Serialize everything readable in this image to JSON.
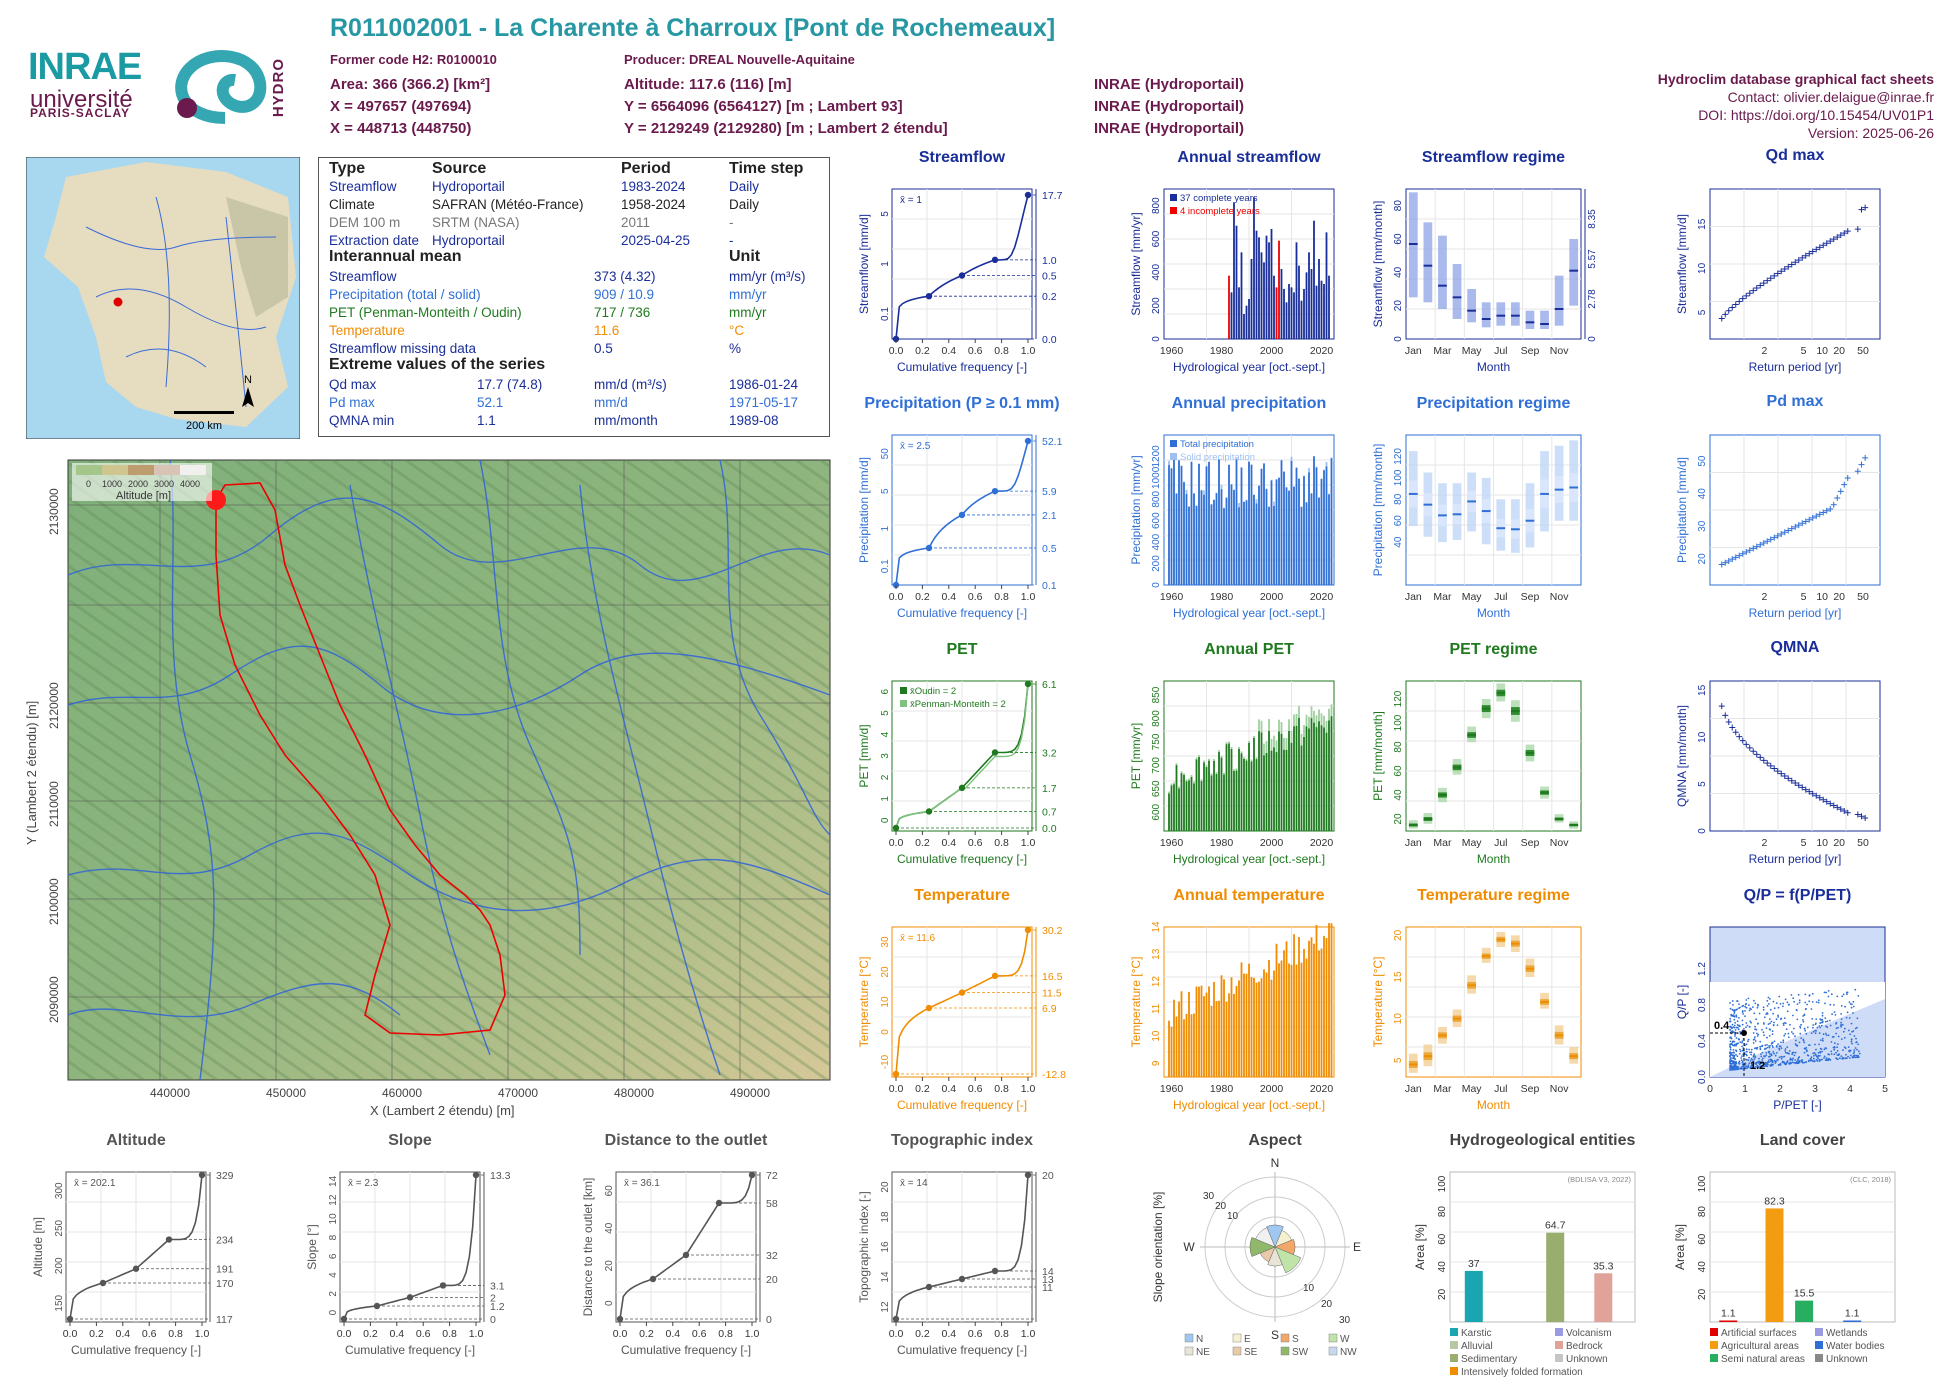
{
  "header": {
    "title": "R011002001 - La Charente à Charroux [Pont de Rochemeaux]",
    "former_code": "Former code H2: R0100010",
    "producer": "Producer: DREAL Nouvelle-Aquitaine",
    "area": "Area: 366 (366.2) [km²]",
    "x93": "X = 497657 (497694)",
    "x2e": "X = 448713 (448750)",
    "altitude": "Altitude: 117.6 (116) [m]",
    "y93": "Y = 6564096 (6564127) [m ; Lambert 93]",
    "y2e": "Y = 2129249 (2129280) [m ; Lambert 2 étendu]",
    "src1": "INRAE (Hydroportail)",
    "src2": "INRAE (Hydroportail)",
    "src3": "INRAE (Hydroportail)",
    "db_title": "Hydroclim database graphical fact sheets",
    "contact": "Contact: olivier.delaigue@inrae.fr",
    "doi": "DOI: https://doi.org/10.15454/UV01P1",
    "version": "Version: 2025-06-26",
    "logo_inrae": "INRAE",
    "logo_univ": "université",
    "logo_ps": "PARIS-SACLAY",
    "logo_hydro": "HYDRO"
  },
  "info": {
    "h_type": "Type",
    "h_source": "Source",
    "h_period": "Period",
    "h_step": "Time step",
    "rows": [
      {
        "type": "Streamflow",
        "source": "Hydroportail",
        "period": "1983-2024",
        "step": "Daily"
      },
      {
        "type": "Climate",
        "source": "SAFRAN (Météo-France)",
        "period": "1958-2024",
        "step": "Daily"
      },
      {
        "type": "DEM 100 m",
        "source": "SRTM (NASA)",
        "period": "2011",
        "step": "-"
      },
      {
        "type": "Extraction date",
        "source": "Hydroportail",
        "period": "2025-04-25",
        "step": "-"
      }
    ],
    "interannual_title": "Interannual mean",
    "unit_title": "Unit",
    "means": [
      {
        "label": "Streamflow",
        "value": "373 (4.32)",
        "unit": "mm/yr (m³/s)"
      },
      {
        "label": "Precipitation (total / solid)",
        "value": "909 / 10.9",
        "unit": "mm/yr"
      },
      {
        "label": "PET (Penman-Monteith / Oudin)",
        "value": "717 / 736",
        "unit": "mm/yr"
      },
      {
        "label": "Temperature",
        "value": "11.6",
        "unit": "°C"
      },
      {
        "label": "Streamflow missing data",
        "value": "0.5",
        "unit": "%"
      }
    ],
    "extreme_title": "Extreme values of the series",
    "extremes": [
      {
        "label": "Qd max",
        "value": "17.7 (74.8)",
        "unit": "mm/d (m³/s)",
        "date": "1986-01-24"
      },
      {
        "label": "Pd max",
        "value": "52.1",
        "unit": "mm/d",
        "date": "1971-05-17"
      },
      {
        "label": "QMNA min",
        "value": "1.1",
        "unit": "mm/month",
        "date": "1989-08"
      }
    ]
  },
  "map": {
    "scale": "200 km",
    "north": "N",
    "legend_title": "Altitude [m]",
    "legend_ticks": [
      "0",
      "1000",
      "2000",
      "3000",
      "4000"
    ],
    "xlabel": "X (Lambert 2 étendu) [m]",
    "ylabel": "Y (Lambert 2 étendu) [m]",
    "xticks": [
      "440000",
      "450000",
      "460000",
      "470000",
      "480000",
      "490000"
    ],
    "yticks": [
      "2090000",
      "2100000",
      "2110000",
      "2120000",
      "2130000"
    ]
  },
  "chart_data": [
    {
      "id": "streamflow_cdf",
      "type": "line",
      "title": "Streamflow",
      "ylabel": "Streamflow [mm/d]",
      "xlabel": "Cumulative frequency [-]",
      "mean_label": "x̄ = 1",
      "scale": "log",
      "ylim": [
        0.02,
        20
      ],
      "x": [
        0,
        0.25,
        0.5,
        0.75,
        1
      ],
      "values": [
        0.03,
        0.2,
        0.5,
        1.0,
        17.7
      ],
      "right_ticks": [
        "17.7",
        "1.0",
        "0.5",
        "0.2",
        "0.0"
      ],
      "left_ticks": [
        "0.1",
        "1",
        "5"
      ]
    },
    {
      "id": "annual_streamflow",
      "type": "bar",
      "title": "Annual streamflow",
      "ylabel": "Streamflow [mm/yr]",
      "xlabel": "Hydrological year [oct.-sept.]",
      "legend": [
        "37 complete years",
        "4 incomplete years"
      ],
      "ylim": [
        0,
        900
      ],
      "yticks": [
        "0",
        "200",
        "400",
        "600",
        "800"
      ],
      "xticks": [
        "1960",
        "1980",
        "2000",
        "2020"
      ],
      "years_start": 1983,
      "values": [
        380,
        280,
        820,
        680,
        310,
        520,
        150,
        200,
        240,
        480,
        850,
        650,
        610,
        520,
        460,
        620,
        580,
        660,
        380,
        310,
        590,
        420,
        300,
        220,
        330,
        310,
        280,
        580,
        440,
        230,
        300,
        400,
        520,
        420,
        710,
        320,
        480,
        350,
        330,
        640,
        380
      ],
      "incomplete": [
        1983,
        2002,
        2003,
        2024
      ]
    },
    {
      "id": "streamflow_regime",
      "type": "box",
      "title": "Streamflow regime",
      "ylabel": "Streamflow [mm/month]",
      "xlabel": "Month",
      "categories": [
        "Jan",
        "Feb",
        "Mar",
        "Apr",
        "May",
        "Jun",
        "Jul",
        "Aug",
        "Sep",
        "Oct",
        "Nov",
        "Dec"
      ],
      "xticks": [
        "Jan",
        "Mar",
        "May",
        "Jul",
        "Sep",
        "Nov"
      ],
      "ylim": [
        0,
        90
      ],
      "yticks": [
        "0",
        "20",
        "40",
        "60",
        "80"
      ],
      "right_ticks": [
        "0",
        "2.78",
        "5.57",
        "8.35"
      ],
      "med": [
        57,
        44,
        32,
        25,
        17,
        12,
        14,
        14,
        10,
        9,
        18,
        41
      ],
      "lo": [
        25,
        22,
        18,
        12,
        10,
        7,
        8,
        8,
        6,
        6,
        8,
        20
      ],
      "hi": [
        88,
        70,
        62,
        45,
        30,
        22,
        22,
        22,
        17,
        17,
        38,
        60
      ]
    },
    {
      "id": "qd_max",
      "type": "scatter",
      "title": "Qd max",
      "ylabel": "Streamflow [mm/d]",
      "xlabel": "Return period [yr]",
      "xticks": [
        "2",
        "5",
        "10",
        "20",
        "50"
      ],
      "ylim": [
        2,
        19
      ],
      "yticks": [
        "5",
        "10",
        "15"
      ]
    },
    {
      "id": "precip_cdf",
      "type": "line",
      "title": "Precipitation (P ≥ 0.1 mm)",
      "ylabel": "Precipitation [mm/d]",
      "xlabel": "Cumulative frequency [-]",
      "mean_label": "x̄ = 2.5",
      "x": [
        0,
        0.25,
        0.5,
        0.75,
        1
      ],
      "values": [
        0.1,
        0.5,
        2.1,
        5.9,
        52.1
      ],
      "right_ticks": [
        "52.1",
        "5.9",
        "2.1",
        "0.5",
        "0.1"
      ],
      "left_ticks": [
        "0.1",
        "1",
        "5",
        "50"
      ]
    },
    {
      "id": "annual_precip",
      "type": "bar",
      "title": "Annual precipitation",
      "ylabel": "Precipitation [mm/yr]",
      "xlabel": "Hydrological year [oct.-sept.]",
      "legend": [
        "Total precipitation",
        "Solid precipitation"
      ],
      "ylim": [
        0,
        1400
      ],
      "yticks": [
        "0",
        "200",
        "400",
        "600",
        "800",
        "1000",
        "1200"
      ],
      "xticks": [
        "1960",
        "1980",
        "2000",
        "2020"
      ],
      "years_start": 1959
    },
    {
      "id": "precip_regime",
      "type": "box",
      "title": "Precipitation regime",
      "ylabel": "Precipitation [mm/month]",
      "xlabel": "Month",
      "categories": [
        "Jan",
        "Feb",
        "Mar",
        "Apr",
        "May",
        "Jun",
        "Jul",
        "Aug",
        "Sep",
        "Oct",
        "Nov",
        "Dec"
      ],
      "xticks": [
        "Jan",
        "Mar",
        "May",
        "Jul",
        "Sep",
        "Nov"
      ],
      "ylim": [
        0,
        140
      ],
      "yticks": [
        "40",
        "60",
        "80",
        "100",
        "120"
      ],
      "med": [
        85,
        75,
        65,
        66,
        78,
        69,
        53,
        52,
        60,
        85,
        89,
        91
      ],
      "lo": [
        55,
        45,
        40,
        42,
        50,
        38,
        32,
        30,
        35,
        50,
        60,
        60
      ],
      "hi": [
        125,
        105,
        95,
        95,
        105,
        100,
        80,
        80,
        95,
        125,
        130,
        135
      ]
    },
    {
      "id": "pd_max",
      "type": "scatter",
      "title": "Pd max",
      "ylabel": "Precipitation [mm/d]",
      "xlabel": "Return period [yr]",
      "xticks": [
        "2",
        "5",
        "10",
        "20",
        "50"
      ],
      "ylim": [
        12,
        58
      ],
      "yticks": [
        "20",
        "30",
        "40",
        "50"
      ]
    },
    {
      "id": "pet_cdf",
      "type": "line",
      "title": "PET",
      "ylabel": "PET [mm/d]",
      "xlabel": "Cumulative frequency [-]",
      "legend": [
        "x̄Oudin = 2",
        "x̄Penman-Monteith = 2"
      ],
      "x": [
        0,
        0.25,
        0.5,
        0.75,
        1
      ],
      "values": [
        0,
        0.7,
        1.7,
        3.2,
        6.1
      ],
      "right_ticks": [
        "6.1",
        "3.2",
        "1.7",
        "0.7",
        "0.0"
      ],
      "left_ticks": [
        "0",
        "1",
        "2",
        "3",
        "4",
        "5",
        "6"
      ]
    },
    {
      "id": "annual_pet",
      "type": "bar",
      "title": "Annual PET",
      "ylabel": "PET [mm/yr]",
      "xlabel": "Hydrological year [oct.-sept.]",
      "ylim": [
        560,
        880
      ],
      "yticks": [
        "600",
        "650",
        "700",
        "750",
        "800",
        "850"
      ],
      "xticks": [
        "1960",
        "1980",
        "2000",
        "2020"
      ],
      "years_start": 1959
    },
    {
      "id": "pet_regime",
      "type": "box",
      "title": "PET regime",
      "ylabel": "PET [mm/month]",
      "xlabel": "Month",
      "categories": [
        "Jan",
        "Feb",
        "Mar",
        "Apr",
        "May",
        "Jun",
        "Jul",
        "Aug",
        "Sep",
        "Oct",
        "Nov",
        "Dec"
      ],
      "xticks": [
        "Jan",
        "Mar",
        "May",
        "Jul",
        "Sep",
        "Nov"
      ],
      "ylim": [
        10,
        135
      ],
      "yticks": [
        "20",
        "40",
        "60",
        "80",
        "100",
        "120"
      ],
      "med": [
        15,
        20,
        40,
        63,
        90,
        112,
        125,
        110,
        75,
        42,
        20,
        15
      ],
      "lo": [
        12,
        16,
        34,
        57,
        84,
        104,
        118,
        101,
        68,
        37,
        17,
        12
      ],
      "hi": [
        19,
        25,
        46,
        70,
        97,
        120,
        133,
        119,
        82,
        47,
        24,
        18
      ]
    },
    {
      "id": "qmna",
      "type": "scatter",
      "title": "QMNA",
      "ylabel": "QMNA [mm/month]",
      "xlabel": "Return period [yr]",
      "xticks": [
        "2",
        "5",
        "10",
        "20",
        "50"
      ],
      "ylim": [
        0,
        16
      ],
      "yticks": [
        "0",
        "5",
        "10",
        "15"
      ]
    },
    {
      "id": "temp_cdf",
      "type": "line",
      "title": "Temperature",
      "ylabel": "Temperature [°C]",
      "xlabel": "Cumulative frequency [-]",
      "mean_label": "x̄ = 11.6",
      "x": [
        0,
        0.25,
        0.5,
        0.75,
        1
      ],
      "values": [
        -12.8,
        6.9,
        11.5,
        16.5,
        30.2
      ],
      "right_ticks": [
        "30.2",
        "16.5",
        "11.5",
        "6.9",
        "-12.8"
      ],
      "left_ticks": [
        "-10",
        "0",
        "10",
        "20",
        "30"
      ],
      "ylim": [
        -14,
        32
      ]
    },
    {
      "id": "annual_temp",
      "type": "bar",
      "title": "Annual temperature",
      "ylabel": "Temperature [°C]",
      "xlabel": "Hydrological year [oct.-sept.]",
      "ylim": [
        8.5,
        14
      ],
      "yticks": [
        "9",
        "10",
        "11",
        "12",
        "13",
        "14"
      ],
      "xticks": [
        "1960",
        "1980",
        "2000",
        "2020"
      ],
      "years_start": 1959
    },
    {
      "id": "temp_regime",
      "type": "box",
      "title": "Temperature regime",
      "ylabel": "Temperature [°C]",
      "xlabel": "Month",
      "categories": [
        "Jan",
        "Feb",
        "Mar",
        "Apr",
        "May",
        "Jun",
        "Jul",
        "Aug",
        "Sep",
        "Oct",
        "Nov",
        "Dec"
      ],
      "xticks": [
        "Jan",
        "Mar",
        "May",
        "Jul",
        "Sep",
        "Nov"
      ],
      "ylim": [
        3,
        21
      ],
      "yticks": [
        "5",
        "10",
        "15",
        "20"
      ],
      "med": [
        4.5,
        5.5,
        8,
        10,
        14,
        17.5,
        19.5,
        19,
        16,
        12,
        8,
        5.5
      ],
      "lo": [
        3.5,
        4.3,
        7,
        9,
        13,
        16.7,
        18.6,
        18,
        15,
        11.2,
        6.9,
        4.6
      ],
      "hi": [
        5.8,
        6.9,
        9,
        11.1,
        15.2,
        18.5,
        20.4,
        20,
        17.2,
        13.1,
        9.2,
        6.6
      ]
    },
    {
      "id": "qp_ppet",
      "type": "scatter",
      "title": "Q/P = f(P/PET)",
      "ylabel": "Q/P [-]",
      "xlabel": "P/PET [-]",
      "xticks": [
        "0",
        "1",
        "2",
        "3",
        "4",
        "5"
      ],
      "yticks": [
        "0.0",
        "0.4",
        "0.8",
        "1.2"
      ],
      "labels": [
        "0.4",
        "1.2"
      ]
    },
    {
      "id": "altitude_cdf",
      "type": "line",
      "title": "Altitude",
      "ylabel": "Altitude [m]",
      "xlabel": "Cumulative frequency [-]",
      "mean_label": "x̄ = 202.1",
      "x": [
        0,
        0.25,
        0.5,
        0.75,
        1
      ],
      "values": [
        117,
        170,
        191,
        234,
        329
      ],
      "right_ticks": [
        "329",
        "234",
        "191",
        "170",
        "117"
      ],
      "left_ticks": [
        "150",
        "200",
        "250",
        "300"
      ]
    },
    {
      "id": "slope_cdf",
      "type": "line",
      "title": "Slope",
      "ylabel": "Slope [°]",
      "xlabel": "Cumulative frequency [-]",
      "mean_label": "x̄ = 2.3",
      "x": [
        0,
        0.25,
        0.5,
        0.75,
        1
      ],
      "values": [
        0,
        1.2,
        2,
        3.1,
        13.3
      ],
      "right_ticks": [
        "13.3",
        "3.1",
        "2",
        "1.2",
        "0"
      ],
      "left_ticks": [
        "0",
        "2",
        "4",
        "6",
        "8",
        "10",
        "12",
        "14"
      ]
    },
    {
      "id": "distance_cdf",
      "type": "line",
      "title": "Distance to the outlet",
      "ylabel": "Distance to the outlet [km]",
      "xlabel": "Cumulative frequency [-]",
      "mean_label": "x̄ = 36.1",
      "x": [
        0,
        0.25,
        0.5,
        0.75,
        1
      ],
      "values": [
        0,
        20,
        32,
        58,
        72
      ],
      "right_ticks": [
        "72",
        "58",
        "32",
        "20",
        "0"
      ],
      "left_ticks": [
        "0",
        "20",
        "40",
        "60"
      ]
    },
    {
      "id": "topo_cdf",
      "type": "line",
      "title": "Topographic index",
      "ylabel": "Topographic index [-]",
      "xlabel": "Cumulative frequency [-]",
      "mean_label": "x̄ = 14",
      "x": [
        0,
        0.25,
        0.5,
        0.75,
        1
      ],
      "values": [
        11,
        13,
        13.5,
        14,
        20
      ],
      "right_ticks": [
        "20",
        "14",
        "13",
        "11"
      ],
      "left_ticks": [
        "12",
        "14",
        "16",
        "18",
        "20"
      ]
    },
    {
      "id": "aspect",
      "type": "pie",
      "title": "Aspect",
      "ylabel": "Slope orientation [%]",
      "directions": [
        "N",
        "E",
        "S",
        "W"
      ],
      "rings": [
        "10",
        "20",
        "30"
      ],
      "legend": [
        "N",
        "E",
        "S",
        "W",
        "NE",
        "SE",
        "SW",
        "NW"
      ]
    },
    {
      "id": "hydrogeo",
      "type": "bar",
      "title": "Hydrogeological entities",
      "ylabel": "Area [%]",
      "note": "(BDLISA V3, 2022)",
      "ylim": [
        0,
        100
      ],
      "yticks": [
        "0",
        "20",
        "40",
        "60",
        "80",
        "100"
      ],
      "categories": [
        "Karstic",
        "Sedimentary",
        "Bedrock"
      ],
      "values": [
        37,
        64.7,
        35.3
      ],
      "value_labels": [
        "37",
        "64.7",
        "35.3"
      ],
      "legend": [
        "Karstic",
        "Volcanism",
        "Alluvial",
        "Bedrock",
        "Sedimentary",
        "Unknown",
        "Intensively folded formation"
      ]
    },
    {
      "id": "landcover",
      "type": "bar",
      "title": "Land cover",
      "ylabel": "Area [%]",
      "note": "(CLC, 2018)",
      "ylim": [
        0,
        100
      ],
      "yticks": [
        "0",
        "20",
        "40",
        "60",
        "80",
        "100"
      ],
      "categories": [
        "Artificial surfaces",
        "Agricultural areas",
        "Semi natural areas",
        "Water bodies"
      ],
      "values": [
        1.1,
        82.3,
        15.5,
        1.1
      ],
      "value_labels": [
        "1.1",
        "82.3",
        "15.5",
        "1.1"
      ],
      "legend": [
        "Artificial surfaces",
        "Wetlands",
        "Agricultural areas",
        "Water bodies",
        "Semi natural areas",
        "Unknown"
      ]
    }
  ],
  "colors": {
    "flow": "#1a2e99",
    "prec": "#2f6fd6",
    "pet": "#1f7a1f",
    "temp": "#f08c00",
    "grey": "#555555"
  }
}
